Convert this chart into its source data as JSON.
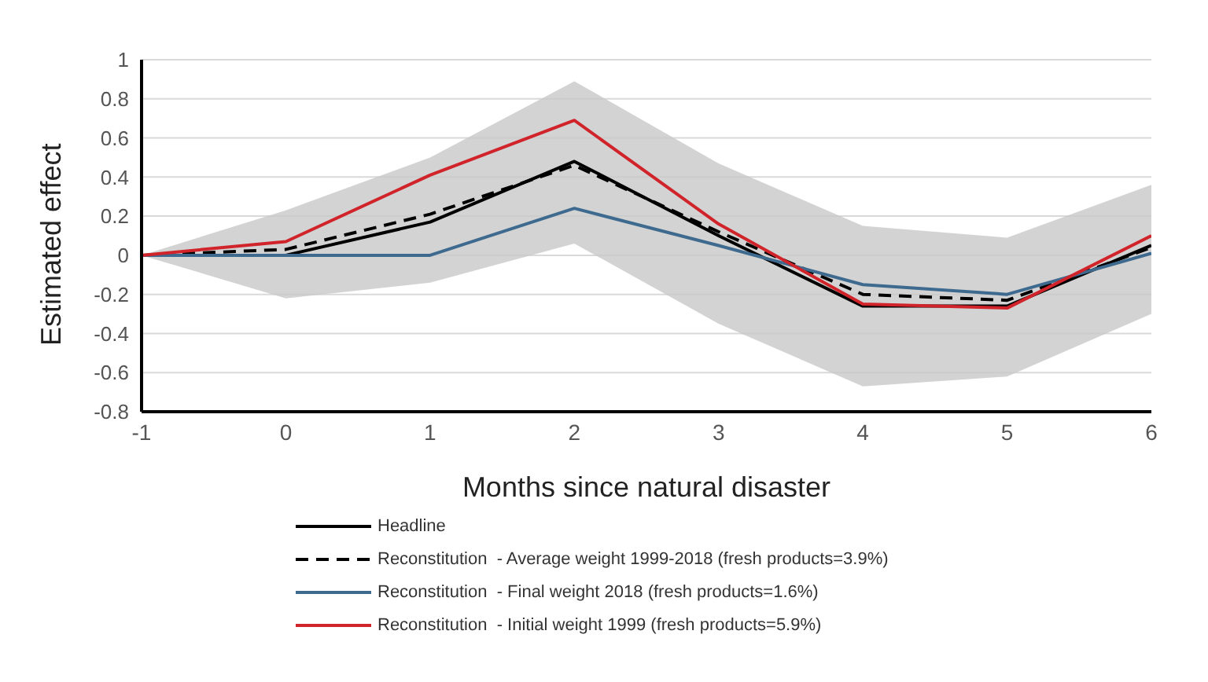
{
  "chart_data": {
    "type": "line",
    "xlabel": "Months since natural disaster",
    "ylabel": "Estimated effect",
    "x": [
      -1,
      0,
      1,
      2,
      3,
      4,
      5,
      6
    ],
    "xlim": [
      -1,
      6
    ],
    "xticks": [
      -1,
      0,
      1,
      2,
      3,
      4,
      5,
      6
    ],
    "ylim": [
      -0.8,
      1
    ],
    "yticks": [
      -0.8,
      -0.6,
      -0.4,
      -0.2,
      0,
      0.2,
      0.4,
      0.6,
      0.8,
      1
    ],
    "grid": "y",
    "legend": "bottom",
    "marker": "none",
    "series": [
      {
        "name": "Headline",
        "color": "#000000",
        "line_style": "solid",
        "values": [
          0,
          0,
          0.17,
          0.48,
          0.1,
          -0.26,
          -0.26,
          0.05
        ],
        "lower": [
          0,
          -0.22,
          -0.14,
          0.06,
          -0.35,
          -0.67,
          -0.62,
          -0.3
        ],
        "upper": [
          0,
          0.23,
          0.5,
          0.89,
          0.47,
          0.15,
          0.09,
          0.36
        ]
      },
      {
        "name": "Reconstitution  - Average weight 1999-2018 (fresh products=3.9%)",
        "color": "#000000",
        "line_style": "dashed",
        "values": [
          0,
          0.03,
          0.21,
          0.46,
          0.12,
          -0.2,
          -0.23,
          0.04
        ]
      },
      {
        "name": "Reconstitution  - Final weight 2018 (fresh products=1.6%)",
        "color": "#3d6a8e",
        "line_style": "solid",
        "values": [
          0,
          0,
          0,
          0.24,
          0.05,
          -0.15,
          -0.2,
          0.01
        ]
      },
      {
        "name": "Reconstitution  - Initial weight 1999 (fresh products=5.9%)",
        "color": "#d0232a",
        "line_style": "solid",
        "values": [
          0,
          0.07,
          0.41,
          0.69,
          0.16,
          -0.25,
          -0.27,
          0.1
        ]
      }
    ]
  }
}
